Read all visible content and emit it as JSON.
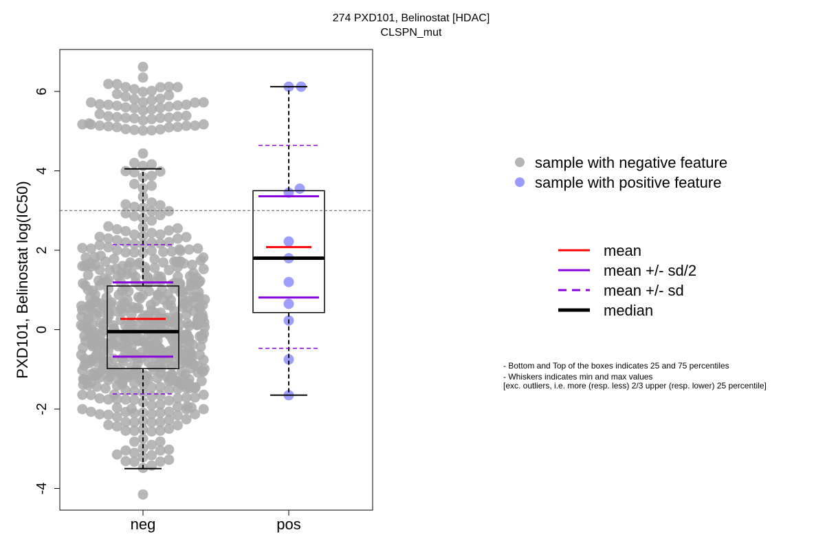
{
  "title": "274 PXD101, Belinostat [HDAC]",
  "subtitle": "CLSPN_mut",
  "colors": {
    "neg_point": "#aaaaaa",
    "pos_point": "#9999ff",
    "mean": "#ff0000",
    "sd": "#8800dd",
    "median": "#000000",
    "threshold": "#555555"
  },
  "legend_points": [
    {
      "label": "sample with negative feature",
      "color": "#b4b4b4"
    },
    {
      "label": "sample with positive feature",
      "color": "#9999ff"
    }
  ],
  "legend_lines": [
    {
      "label": "mean",
      "color": "#ff0000",
      "style": "solid",
      "weight": "normal"
    },
    {
      "label": "mean +/- sd/2",
      "color": "#8800dd",
      "style": "solid",
      "weight": "normal"
    },
    {
      "label": "mean +/- sd",
      "color": "#8800dd",
      "style": "dashed",
      "weight": "normal"
    },
    {
      "label": "median",
      "color": "#000000",
      "style": "solid",
      "weight": "bold"
    }
  ],
  "notes": [
    "- Bottom and Top of the boxes indicates 25 and 75 percentiles",
    "- Whiskers indicates min and max values",
    "[exc. outliers, i.e. more (resp. less) 2/3 upper (resp. lower) 25 percentile]"
  ],
  "chart_data": {
    "type": "box",
    "ylabel": "PXD101, Belinostat log(IC50)",
    "xlabel": "",
    "categories": [
      "neg",
      "pos"
    ],
    "ylim": [
      -4.5,
      7.0
    ],
    "yticks": [
      -4,
      -2,
      0,
      2,
      4,
      6
    ],
    "threshold": 3.0,
    "grid": false,
    "groups": [
      {
        "name": "neg",
        "q1": -0.98,
        "median": -0.05,
        "q3": 1.1,
        "whisker_low": -3.5,
        "whisker_high": 4.05,
        "mean": 0.27,
        "mean_minus_halfsd": -0.68,
        "mean_plus_halfsd": 1.19,
        "mean_minus_sd": -1.62,
        "mean_plus_sd": 2.14,
        "n_points": 640
      },
      {
        "name": "pos",
        "q1": 0.43,
        "median": 1.8,
        "q3": 3.5,
        "whisker_low": -1.65,
        "whisker_high": 6.12,
        "mean": 2.08,
        "mean_minus_halfsd": 0.81,
        "mean_plus_halfsd": 3.36,
        "mean_minus_sd": -0.47,
        "mean_plus_sd": 4.64,
        "points": [
          6.12,
          6.12,
          3.55,
          3.45,
          2.22,
          1.8,
          1.2,
          0.65,
          0.23,
          -0.75,
          -1.65
        ]
      }
    ]
  }
}
